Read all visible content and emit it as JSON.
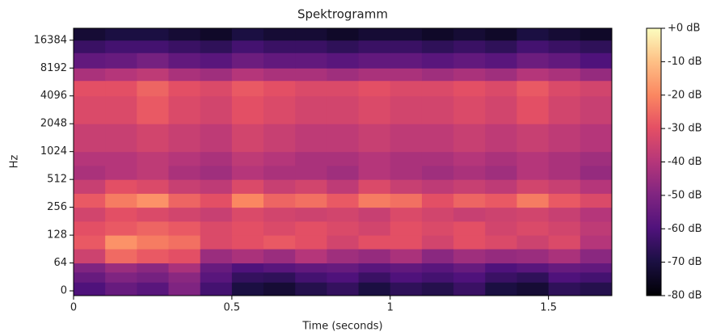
{
  "chart_data": {
    "type": "heatmap",
    "title": "Spektrogramm",
    "xlabel": "Time (seconds)",
    "ylabel": "Hz",
    "x_edges": [
      0,
      0.1,
      0.2,
      0.3,
      0.4,
      0.5,
      0.6,
      0.7,
      0.8,
      0.9,
      1.0,
      1.1,
      1.2,
      1.3,
      1.4,
      1.5,
      1.6,
      1.7
    ],
    "y_edges": [
      -11,
      20,
      43,
      64,
      91,
      128,
      181,
      256,
      362,
      512,
      724,
      1024,
      2048,
      4096,
      6000,
      8192,
      12000,
      16384,
      22050
    ],
    "z": [
      [
        -60,
        -55,
        -58,
        -50,
        -62,
        -70,
        -72,
        -68,
        -65,
        -70,
        -66,
        -68,
        -64,
        -70,
        -72,
        -66,
        -68
      ],
      [
        -55,
        -50,
        -52,
        -48,
        -58,
        -65,
        -66,
        -62,
        -60,
        -64,
        -60,
        -62,
        -60,
        -64,
        -66,
        -60,
        -62
      ],
      [
        -50,
        -45,
        -48,
        -42,
        -55,
        -60,
        -58,
        -56,
        -55,
        -58,
        -56,
        -58,
        -55,
        -60,
        -58,
        -55,
        -56
      ],
      [
        -35,
        -25,
        -28,
        -30,
        -45,
        -42,
        -45,
        -40,
        -44,
        -46,
        -42,
        -48,
        -44,
        -46,
        -45,
        -42,
        -48
      ],
      [
        -28,
        -18,
        -22,
        -24,
        -32,
        -30,
        -28,
        -30,
        -34,
        -30,
        -30,
        -34,
        -30,
        -32,
        -35,
        -32,
        -40
      ],
      [
        -30,
        -28,
        -26,
        -28,
        -32,
        -30,
        -32,
        -30,
        -32,
        -34,
        -30,
        -32,
        -30,
        -34,
        -32,
        -34,
        -38
      ],
      [
        -34,
        -30,
        -32,
        -34,
        -36,
        -32,
        -34,
        -35,
        -34,
        -36,
        -32,
        -34,
        -36,
        -35,
        -34,
        -36,
        -40
      ],
      [
        -28,
        -22,
        -18,
        -26,
        -30,
        -20,
        -26,
        -24,
        -28,
        -22,
        -24,
        -30,
        -26,
        -28,
        -22,
        -28,
        -32
      ],
      [
        -36,
        -30,
        -32,
        -36,
        -38,
        -32,
        -36,
        -34,
        -38,
        -32,
        -36,
        -38,
        -36,
        -38,
        -34,
        -36,
        -40
      ],
      [
        -42,
        -40,
        -38,
        -42,
        -44,
        -40,
        -42,
        -42,
        -44,
        -40,
        -42,
        -44,
        -42,
        -44,
        -40,
        -42,
        -46
      ],
      [
        -40,
        -40,
        -38,
        -40,
        -42,
        -38,
        -40,
        -42,
        -42,
        -40,
        -42,
        -42,
        -40,
        -42,
        -40,
        -42,
        -44
      ],
      [
        -36,
        -36,
        -34,
        -36,
        -38,
        -34,
        -36,
        -38,
        -38,
        -36,
        -38,
        -38,
        -36,
        -38,
        -36,
        -38,
        -40
      ],
      [
        -32,
        -32,
        -28,
        -32,
        -34,
        -30,
        -32,
        -34,
        -34,
        -32,
        -34,
        -34,
        -32,
        -34,
        -30,
        -34,
        -36
      ],
      [
        -30,
        -30,
        -26,
        -30,
        -32,
        -28,
        -30,
        -32,
        -32,
        -30,
        -32,
        -32,
        -30,
        -32,
        -28,
        -32,
        -34
      ],
      [
        -42,
        -40,
        -38,
        -42,
        -44,
        -40,
        -42,
        -42,
        -44,
        -42,
        -42,
        -44,
        -42,
        -44,
        -40,
        -42,
        -46
      ],
      [
        -56,
        -55,
        -52,
        -56,
        -58,
        -54,
        -56,
        -56,
        -58,
        -56,
        -56,
        -58,
        -56,
        -58,
        -54,
        -56,
        -60
      ],
      [
        -64,
        -62,
        -62,
        -64,
        -66,
        -62,
        -64,
        -64,
        -66,
        -64,
        -64,
        -66,
        -64,
        -66,
        -62,
        -64,
        -66
      ],
      [
        -72,
        -70,
        -70,
        -72,
        -74,
        -70,
        -72,
        -72,
        -74,
        -72,
        -72,
        -74,
        -72,
        -74,
        -70,
        -72,
        -74
      ]
    ],
    "xlim": [
      0,
      1.7
    ],
    "xticks": [
      0,
      0.5,
      1,
      1.5
    ],
    "ylim": [
      -11,
      22050
    ],
    "yscale": "symlog",
    "linthresh": 64,
    "yticks": [
      0,
      64,
      128,
      256,
      512,
      1024,
      2048,
      4096,
      8192,
      16384
    ],
    "colormap": "magma",
    "clim": [
      -80,
      0
    ],
    "cticks": [
      {
        "value": 0,
        "label": "+0 dB"
      },
      {
        "value": -10,
        "label": "-10 dB"
      },
      {
        "value": -20,
        "label": "-20 dB"
      },
      {
        "value": -30,
        "label": "-30 dB"
      },
      {
        "value": -40,
        "label": "-40 dB"
      },
      {
        "value": -50,
        "label": "-50 dB"
      },
      {
        "value": -60,
        "label": "-60 dB"
      },
      {
        "value": -70,
        "label": "-70 dB"
      },
      {
        "value": -80,
        "label": "-80 dB"
      }
    ]
  }
}
